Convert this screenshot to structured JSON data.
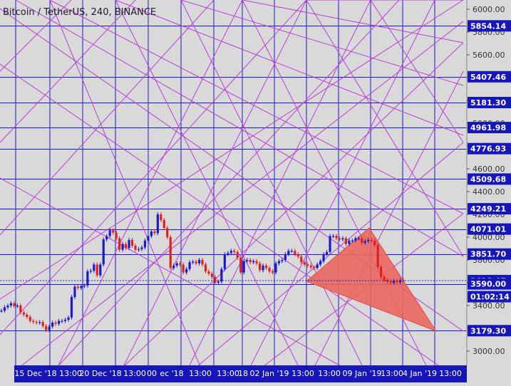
{
  "header": {
    "symbol_label": "Bitcoin / TetherUS, 240, BINANCE"
  },
  "countdown": "01:02:14",
  "colors": {
    "background": "#d9d9d9",
    "grid_line": "#1a1acc",
    "fan_line": "#b83fd6",
    "axis_badge": "#1717b8",
    "up_candle": "#1a1acc",
    "down_candle": "#e02020",
    "triangle_fill": "#e8675f",
    "triangle_edge": "#e04a4a",
    "price_line": "#2222aa"
  },
  "chart_data": {
    "type": "candlestick",
    "symbol": "Bitcoin / TetherUS",
    "interval": "240",
    "exchange": "BINANCE",
    "ylim": [
      2940,
      6050
    ],
    "y_ticks": [
      3000,
      3200,
      3400,
      3600,
      3800,
      4000,
      4200,
      4400,
      4600,
      4800,
      5000,
      5200,
      5400,
      5600,
      5800,
      6000
    ],
    "x_tick_labels": [
      "15 Dec '18",
      "13:00",
      "20 Dec '18",
      "13:00",
      "00",
      "ec '18",
      "13:00",
      "13:00",
      "18",
      "02 Jan '19",
      "13:00",
      "13:00",
      "09 Jan '19",
      "13:00",
      "4 Jan '19",
      "13:00"
    ],
    "price_labels": [
      "5854.14",
      "5407.46",
      "5181.30",
      "4961.98",
      "4776.93",
      "4509.68",
      "4249.21",
      "4071.01",
      "3851.70",
      "3618.67",
      "3590.00",
      "3179.30"
    ],
    "horizontal_levels": [
      5854.14,
      5407.46,
      5181.3,
      4961.98,
      4776.93,
      4509.68,
      4249.21,
      4071.01,
      3851.7,
      3590.0,
      3179.3
    ],
    "last_price": 3618.67,
    "candles_close": [
      3355,
      3385,
      3400,
      3420,
      3395,
      3400,
      3340,
      3320,
      3300,
      3265,
      3255,
      3250,
      3255,
      3220,
      3185,
      3215,
      3250,
      3240,
      3265,
      3265,
      3275,
      3295,
      3475,
      3565,
      3555,
      3570,
      3575,
      3700,
      3705,
      3760,
      3665,
      3760,
      3980,
      4010,
      4060,
      4040,
      3990,
      3890,
      3940,
      3905,
      3975,
      3925,
      3890,
      3895,
      3910,
      3970,
      4010,
      4050,
      4035,
      4200,
      4150,
      4080,
      4000,
      3730,
      3750,
      3770,
      3760,
      3690,
      3720,
      3780,
      3785,
      3770,
      3800,
      3760,
      3700,
      3680,
      3650,
      3600,
      3610,
      3720,
      3850,
      3860,
      3880,
      3870,
      3820,
      3690,
      3790,
      3800,
      3780,
      3790,
      3770,
      3710,
      3750,
      3730,
      3700,
      3690,
      3770,
      3790,
      3800,
      3850,
      3880,
      3880,
      3850,
      3830,
      3780,
      3760,
      3750,
      3735,
      3730,
      3760,
      3790,
      3850,
      3870,
      4010,
      4010,
      3990,
      3980,
      3990,
      3940,
      3970,
      3970,
      3990,
      3990,
      3950,
      3965,
      3975,
      3970,
      3930,
      3740,
      3650,
      3625,
      3610,
      3600,
      3615,
      3605,
      3620,
      3618
    ]
  }
}
